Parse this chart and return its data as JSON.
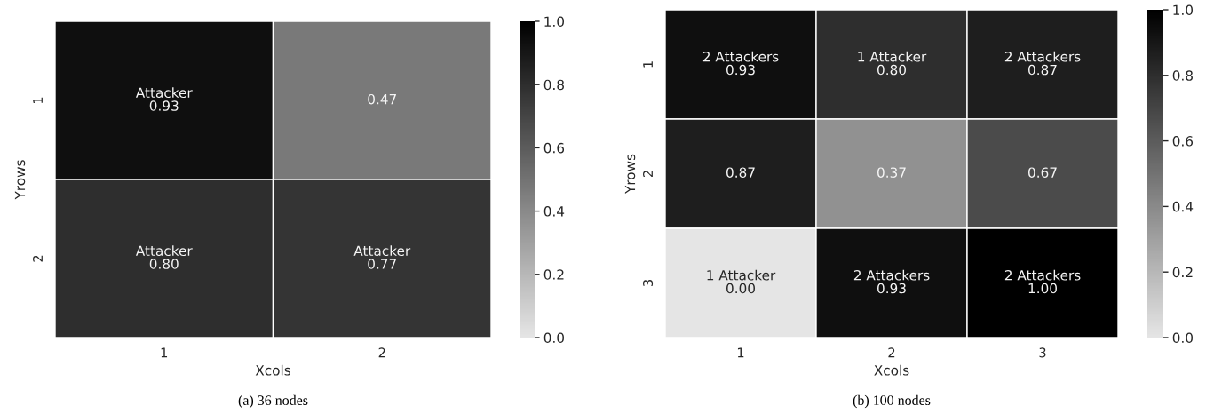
{
  "chart_data": [
    {
      "type": "heatmap",
      "xlabel": "Xcols",
      "ylabel": "Yrows",
      "categories": [
        "1",
        "2"
      ],
      "y_categories": [
        "1",
        "2"
      ],
      "cells": [
        [
          0.93,
          0.47
        ],
        [
          0.8,
          0.77
        ]
      ],
      "cell_labels": [
        [
          "Attacker\n0.93",
          "0.47"
        ],
        [
          "Attacker\n0.80",
          "Attacker\n0.77"
        ]
      ],
      "colors": [
        "#e5e5e5",
        "#000000"
      ],
      "clim": [
        0,
        1
      ],
      "cticks": [
        {
          "value": 0,
          "label": "0.0"
        },
        {
          "value": 0.2,
          "label": "0.2"
        },
        {
          "value": 0.4,
          "label": "0.4"
        },
        {
          "value": 0.6,
          "label": "0.6"
        },
        {
          "value": 0.8,
          "label": "0.8"
        },
        {
          "value": 1,
          "label": "1.0"
        }
      ],
      "annotations": [
        "(a) 36 nodes"
      ]
    },
    {
      "type": "heatmap",
      "xlabel": "Xcols",
      "ylabel": "Yrows",
      "categories": [
        "1",
        "2",
        "3"
      ],
      "y_categories": [
        "1",
        "2",
        "3"
      ],
      "cells": [
        [
          0.93,
          0.8,
          0.87
        ],
        [
          0.87,
          0.37,
          0.67
        ],
        [
          0.0,
          0.93,
          1.0
        ]
      ],
      "cell_labels": [
        [
          "2 Attackers\n0.93",
          "1 Attacker\n0.80",
          "2 Attackers\n0.87"
        ],
        [
          "0.87",
          "0.37",
          "0.67"
        ],
        [
          "1 Attacker\n0.00",
          "2 Attackers\n0.93",
          "2 Attackers\n1.00"
        ]
      ],
      "colors": [
        "#e5e5e5",
        "#000000"
      ],
      "clim": [
        0,
        1
      ],
      "cticks": [
        {
          "value": 0,
          "label": "0.0"
        },
        {
          "value": 0.2,
          "label": "0.2"
        },
        {
          "value": 0.4,
          "label": "0.4"
        },
        {
          "value": 0.6,
          "label": "0.6"
        },
        {
          "value": 0.8,
          "label": "0.8"
        },
        {
          "value": 1,
          "label": "1.0"
        }
      ],
      "annotations": [
        "(b) 100 nodes"
      ]
    }
  ]
}
